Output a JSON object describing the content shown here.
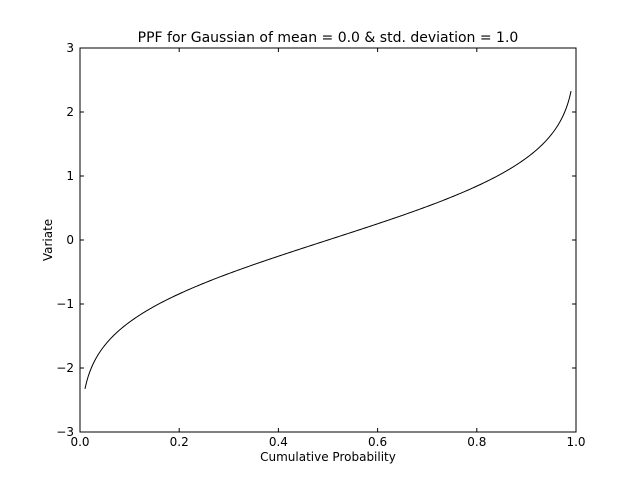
{
  "chart_data": {
    "type": "line",
    "title": "PPF for Gaussian of mean = 0.0 & std. deviation = 1.0",
    "xlabel": "Cumulative Probability",
    "ylabel": "Variate",
    "xlim": [
      0.0,
      1.0
    ],
    "ylim": [
      -3,
      3
    ],
    "grid": false,
    "legend": null,
    "xticks": [
      "0.0",
      "0.2",
      "0.4",
      "0.6",
      "0.8",
      "1.0"
    ],
    "yticks": [
      "−3",
      "−2",
      "−1",
      "0",
      "1",
      "2",
      "3"
    ],
    "series": [
      {
        "name": "PPF",
        "color": "#000000",
        "x": [
          0.01,
          0.02,
          0.03,
          0.05,
          0.075,
          0.1,
          0.15,
          0.2,
          0.25,
          0.3,
          0.35,
          0.4,
          0.45,
          0.5,
          0.55,
          0.6,
          0.65,
          0.7,
          0.75,
          0.8,
          0.85,
          0.9,
          0.925,
          0.95,
          0.97,
          0.98,
          0.99
        ],
        "values": [
          -2.326,
          -2.054,
          -1.881,
          -1.645,
          -1.44,
          -1.282,
          -1.036,
          -0.842,
          -0.674,
          -0.524,
          -0.385,
          -0.253,
          -0.126,
          0.0,
          0.126,
          0.253,
          0.385,
          0.524,
          0.674,
          0.842,
          1.036,
          1.282,
          1.44,
          1.645,
          1.881,
          2.054,
          2.326
        ]
      }
    ]
  }
}
